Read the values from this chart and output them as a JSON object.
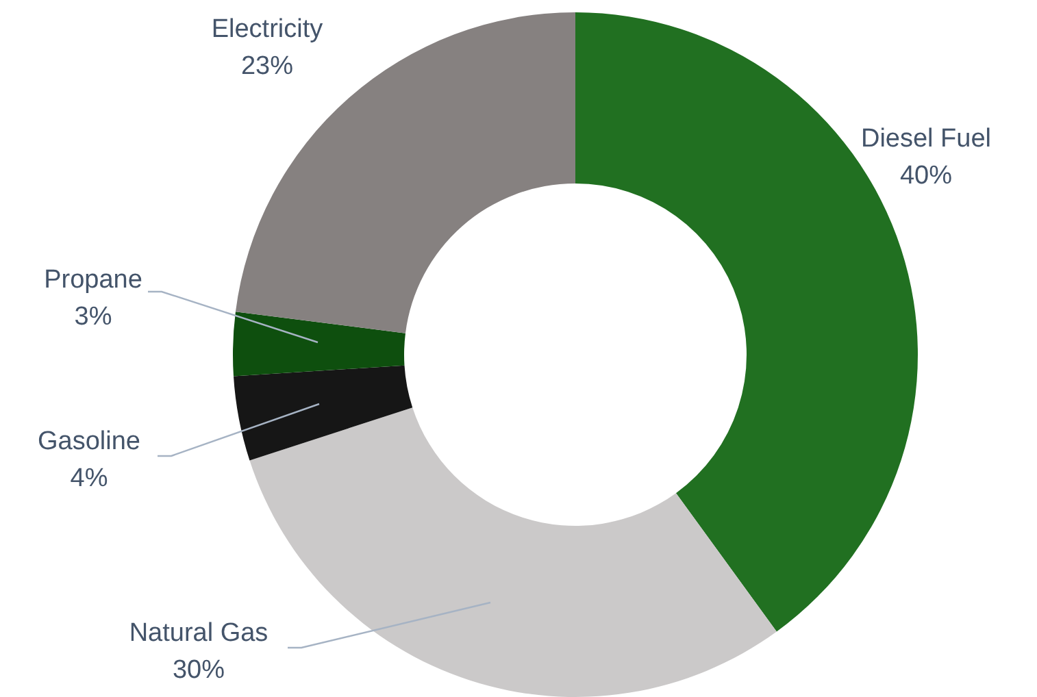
{
  "chart_data": {
    "type": "donut",
    "categories": [
      "Diesel Fuel",
      "Natural Gas",
      "Gasoline",
      "Propane",
      "Electricity"
    ],
    "values": [
      40,
      30,
      4,
      3,
      23
    ],
    "colors": [
      "#217021",
      "#cbc9c9",
      "#161616",
      "#0e4f0e",
      "#868180"
    ],
    "value_labels": [
      "40%",
      "30%",
      "4%",
      "3%",
      "23%"
    ]
  }
}
